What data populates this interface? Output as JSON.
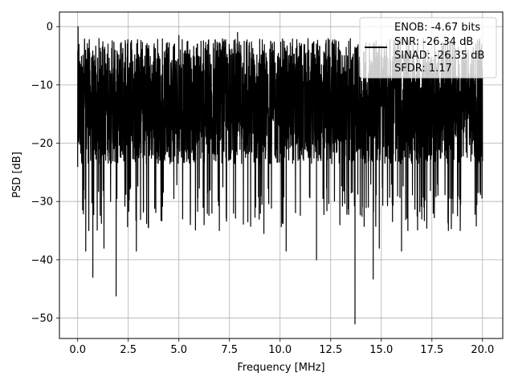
{
  "chart_data": {
    "type": "line",
    "title": "",
    "xlabel": "Frequency [MHz]",
    "ylabel": "PSD [dB]",
    "xlim": [
      -0.9,
      21.0
    ],
    "ylim": [
      -53.5,
      2.5
    ],
    "x_ticks": [
      0.0,
      2.5,
      5.0,
      7.5,
      10.0,
      12.5,
      15.0,
      17.5,
      20.0
    ],
    "x_tick_labels": [
      "0.0",
      "2.5",
      "5.0",
      "7.5",
      "10.0",
      "12.5",
      "15.0",
      "17.5",
      "20.0"
    ],
    "y_ticks": [
      0,
      -10,
      -20,
      -30,
      -40,
      -50
    ],
    "y_tick_labels": [
      "0",
      "−10",
      "−20",
      "−30",
      "−40",
      "−50"
    ],
    "grid": true,
    "legend_position": "top-right",
    "legend": [
      {
        "label": "ENOB: -4.67 bits",
        "style": "none"
      },
      {
        "label": "SNR: -26.34 dB",
        "style": "line"
      },
      {
        "label": "SINAD: -26.35 dB",
        "style": "none"
      },
      {
        "label": "SFDR: 1.17",
        "style": "none"
      }
    ],
    "series": [
      {
        "color": "#000000",
        "x_range": [
          0,
          20
        ],
        "noise_band_db": [
          -27,
          -4
        ],
        "points": [
          [
            0.0,
            -24
          ],
          [
            0.02,
            0
          ],
          [
            0.05,
            -14
          ],
          [
            0.1,
            -6
          ],
          [
            0.2,
            -20
          ],
          [
            0.3,
            -28
          ],
          [
            0.4,
            -38.5
          ],
          [
            0.55,
            -35
          ],
          [
            0.75,
            -43
          ],
          [
            1.3,
            -38
          ],
          [
            1.9,
            -46.2
          ],
          [
            2.9,
            -38.5
          ],
          [
            3.5,
            -34.5
          ],
          [
            7.0,
            -35
          ],
          [
            7.7,
            -32
          ],
          [
            9.2,
            -35.5
          ],
          [
            10.3,
            -38.5
          ],
          [
            11.8,
            -40
          ],
          [
            13.7,
            -51
          ],
          [
            14.6,
            -43.3
          ],
          [
            14.9,
            -38
          ],
          [
            16.0,
            -38.5
          ],
          [
            17.0,
            -33
          ],
          [
            18.9,
            -35
          ],
          [
            1.5,
            -3
          ],
          [
            5.0,
            -1.5
          ],
          [
            7.9,
            -1
          ],
          [
            10.2,
            -2.5
          ],
          [
            11.8,
            -3
          ],
          [
            13.8,
            -3.5
          ],
          [
            17.3,
            -4
          ],
          [
            20.0,
            -20
          ]
        ]
      }
    ]
  }
}
